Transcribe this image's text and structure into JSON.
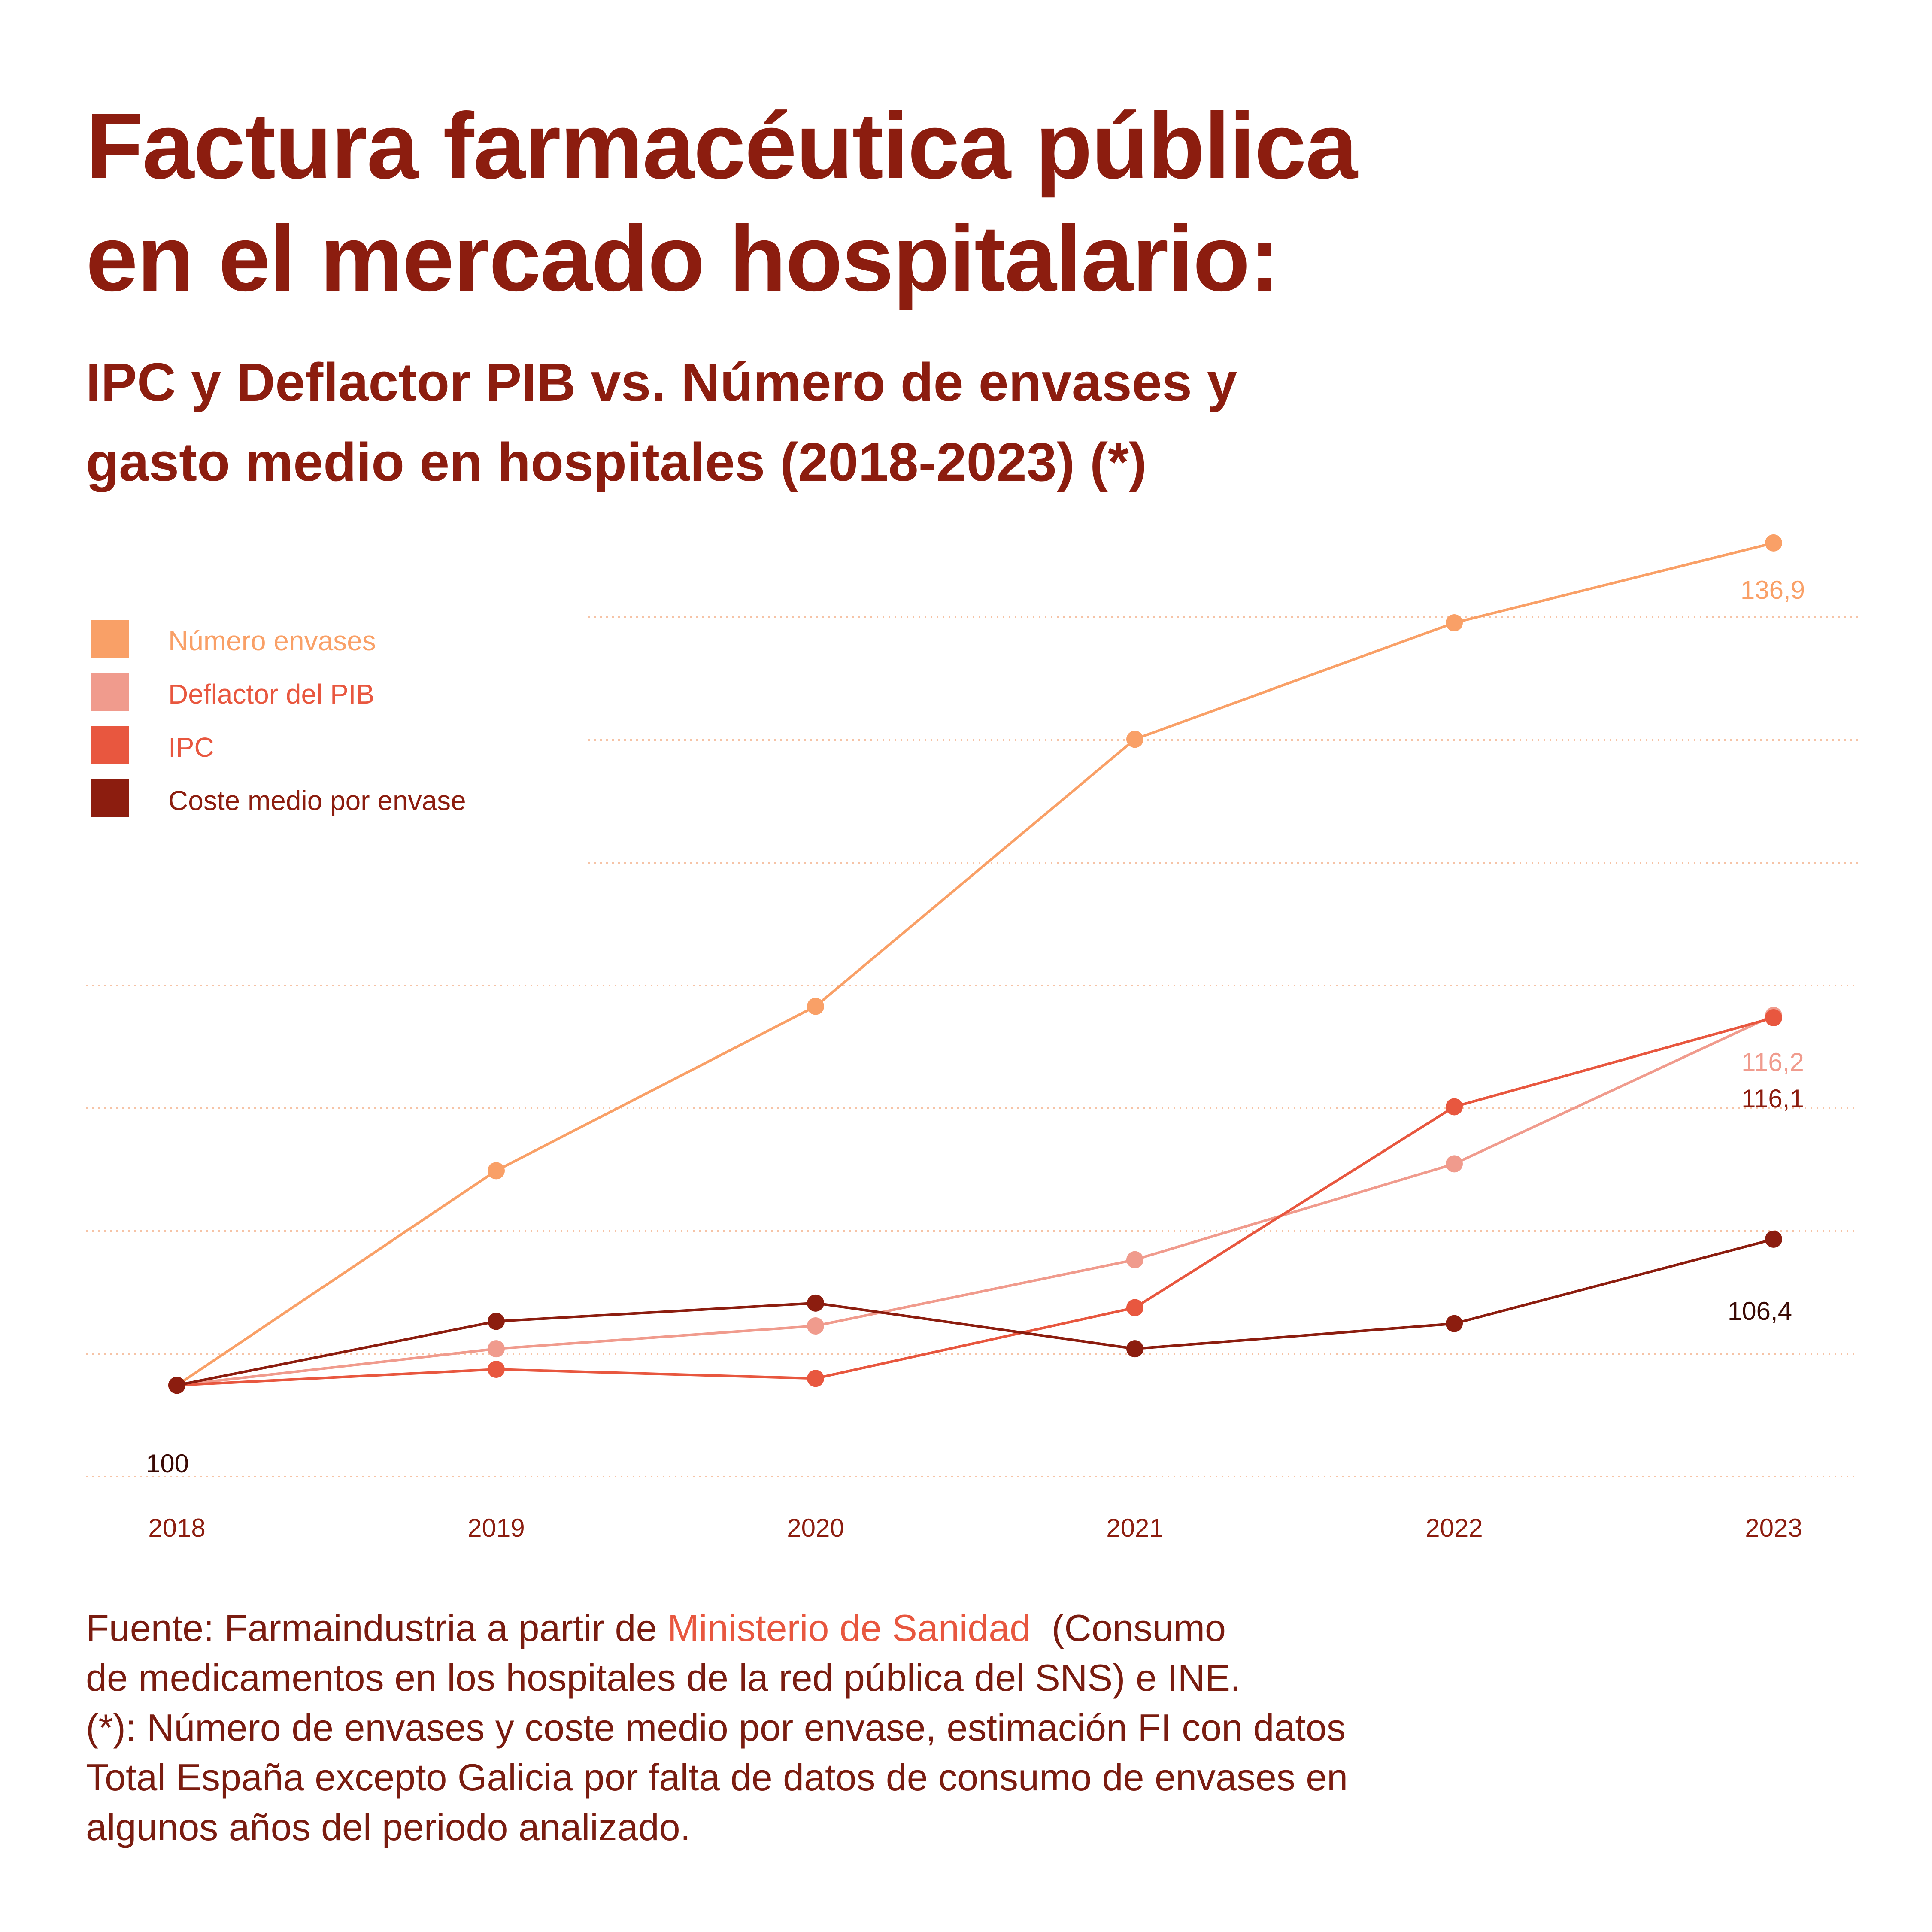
{
  "title": {
    "line1": "Factura farmacéutica pública",
    "line2": "en el mercado hospitalario:"
  },
  "subtitle": {
    "line1": "IPC y Deflactor PIB vs. Número de envases y",
    "line2": "gasto medio en hospitales (2018-2023) (*)"
  },
  "legend": [
    {
      "label": "Número envases",
      "color": "#f9a067"
    },
    {
      "label": "Deflactor del PIB",
      "color": "#f09b8d"
    },
    {
      "label": "IPC",
      "color": "#e8573f"
    },
    {
      "label": "Coste medio por envase",
      "color": "#8c1d0f"
    }
  ],
  "chart_data": {
    "type": "line",
    "x": [
      "2018",
      "2019",
      "2020",
      "2021",
      "2022",
      "2023"
    ],
    "ylim": [
      96,
      140
    ],
    "grid": true,
    "legend_position": "top-left",
    "series": [
      {
        "name": "Número envases",
        "color": "#f9a067",
        "values": [
          100,
          109.4,
          116.6,
          128.3,
          133.4,
          136.9
        ]
      },
      {
        "name": "Deflactor del PIB",
        "color": "#f09b8d",
        "values": [
          100,
          101.6,
          102.6,
          105.5,
          109.7,
          116.2
        ]
      },
      {
        "name": "IPC",
        "color": "#e8573f",
        "values": [
          100,
          100.7,
          100.3,
          103.4,
          112.2,
          116.1
        ]
      },
      {
        "name": "Coste medio por envase",
        "color": "#8c1d0f",
        "values": [
          100,
          102.8,
          103.6,
          101.6,
          102.7,
          106.4
        ]
      }
    ],
    "data_labels": [
      {
        "text": "136,9",
        "x": "2023",
        "value": 136.9,
        "color": "#f9a067"
      },
      {
        "text": "116,2",
        "x": "2023",
        "value": 116.2,
        "color": "#f09b8d"
      },
      {
        "text": "116,1",
        "x": "2023",
        "value": 116.1,
        "color": "#8c1d0f"
      },
      {
        "text": "106,4",
        "x": "2023",
        "value": 106.4,
        "color": "#3a0a05"
      },
      {
        "text": "100",
        "x": "2018",
        "value": 100,
        "color": "#3a0a05"
      }
    ]
  },
  "footnote": {
    "part1": "Fuente: Farmaindustria a partir de ",
    "link": "Ministerio de Sanidad",
    "part2": "  (Consumo",
    "line2": "de medicamentos en los hospitales de la red pública del SNS) e INE.",
    "line3": "(*): Número de envases y coste medio por envase, estimación FI con datos",
    "line4": "Total España excepto Galicia por falta de datos de consumo de envases en",
    "line5": "algunos años del periodo analizado."
  }
}
